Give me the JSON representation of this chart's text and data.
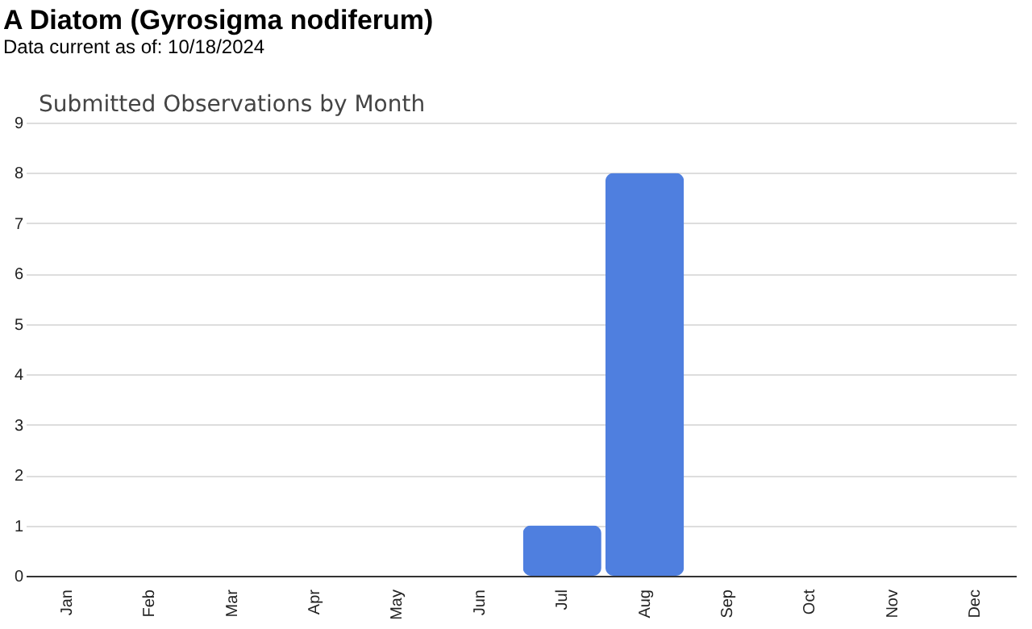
{
  "chart_data": {
    "type": "bar",
    "title": "A Diatom   (Gyrosigma nodiferum)",
    "subtitle": "Data current as of: 10/18/2024",
    "annotations": [
      "Submitted Observations by Month"
    ],
    "categories": [
      "Jan",
      "Feb",
      "Mar",
      "Apr",
      "May",
      "Jun",
      "Jul",
      "Aug",
      "Sep",
      "Oct",
      "Nov",
      "Dec"
    ],
    "values": [
      0,
      0,
      0,
      0,
      0,
      0,
      1,
      8,
      0,
      0,
      0,
      0
    ],
    "color": "#4f7fdf",
    "ylim": [
      0,
      9
    ],
    "yticks": [
      0,
      1,
      2,
      3,
      4,
      5,
      6,
      7,
      8,
      9
    ],
    "grid": "y"
  }
}
